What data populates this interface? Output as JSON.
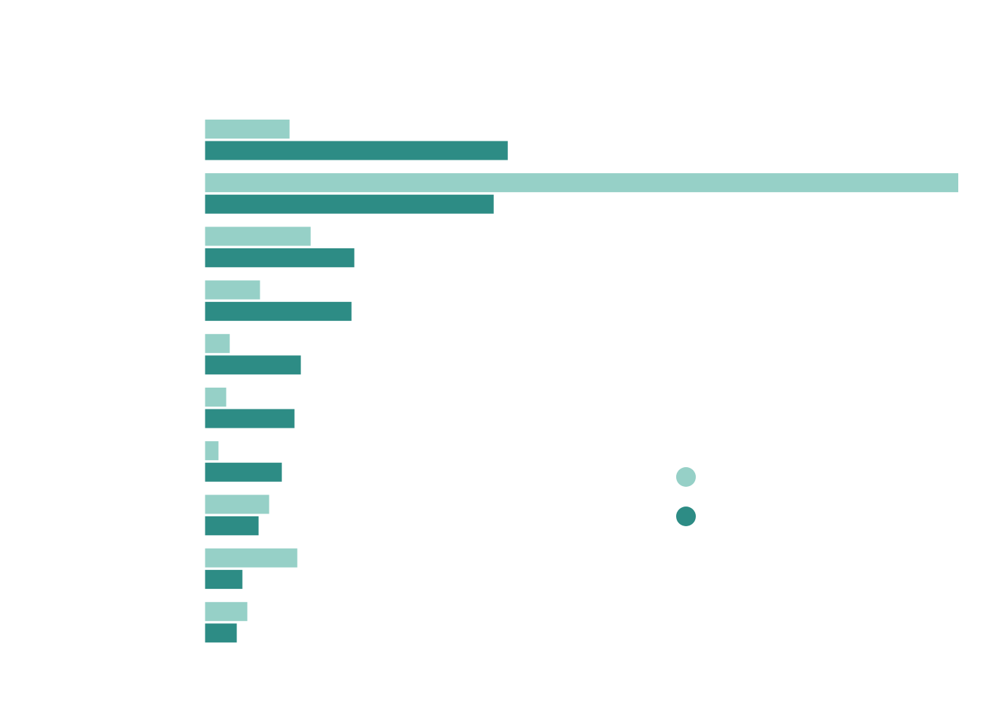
{
  "chart_data": {
    "type": "bar",
    "orientation": "horizontal",
    "title": "",
    "xlabel": "",
    "ylabel": "",
    "categories": [
      "",
      "",
      "",
      "",
      "",
      "",
      "",
      "",
      "",
      ""
    ],
    "series": [
      {
        "color": "#96d0c7",
        "values": [
          12.0,
          107.0,
          15.0,
          7.8,
          3.5,
          3.0,
          1.9,
          9.1,
          13.1,
          6.0
        ]
      },
      {
        "color": "#2d8c85",
        "values": [
          43.0,
          41.0,
          21.2,
          20.8,
          13.6,
          12.7,
          10.9,
          7.6,
          5.3,
          4.5
        ]
      }
    ],
    "xlim": [
      0,
      107
    ],
    "grid": false,
    "legend": {
      "position": "right",
      "entries": [
        "",
        ""
      ]
    }
  }
}
